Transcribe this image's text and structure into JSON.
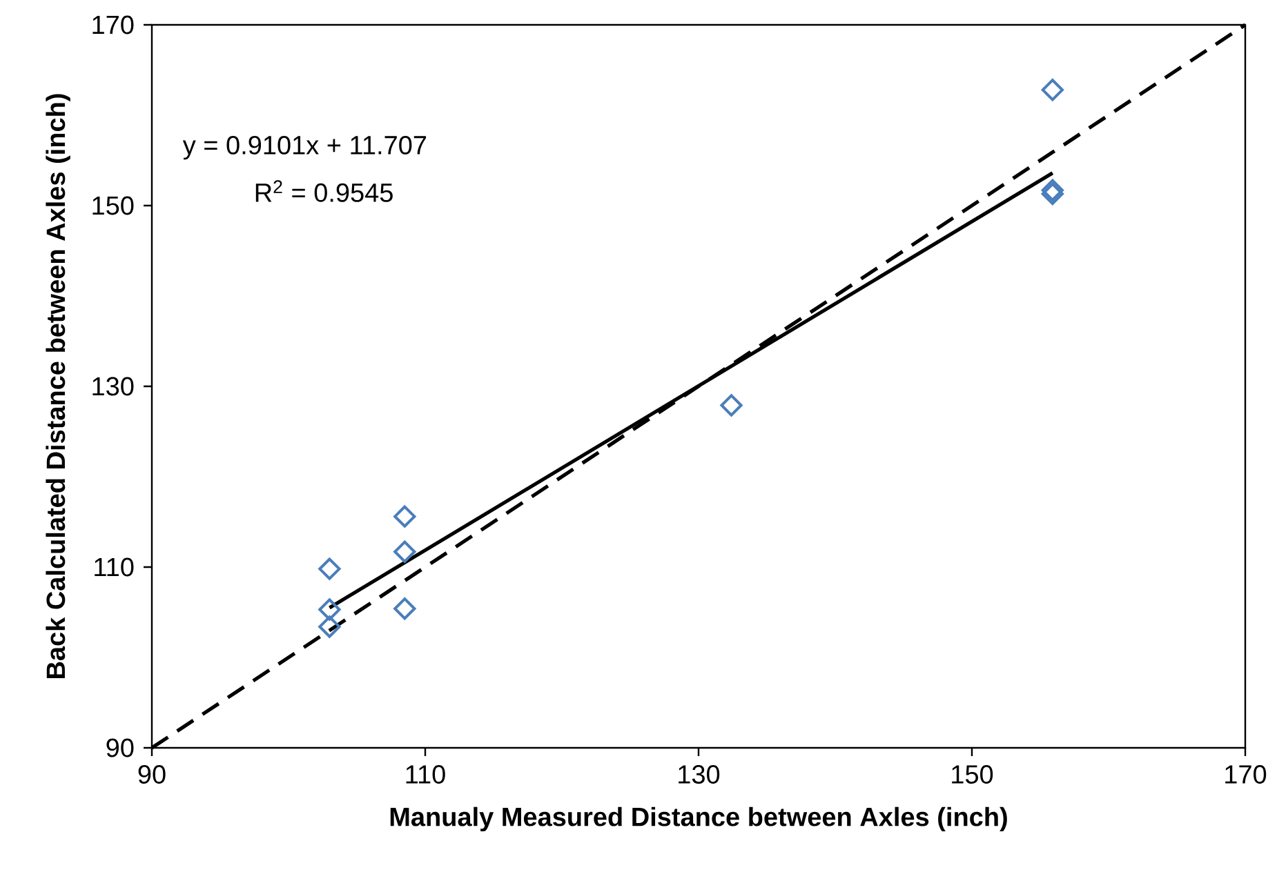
{
  "chart_data": {
    "type": "scatter",
    "xlabel": "Manualy Measured Distance between Axles (inch)",
    "ylabel": "Back Calculated Distance between Axles (inch)",
    "xlim": [
      90,
      170
    ],
    "ylim": [
      90,
      170
    ],
    "xticks": [
      90,
      110,
      130,
      150,
      170
    ],
    "yticks": [
      90,
      110,
      130,
      150,
      170
    ],
    "grid": false,
    "annotations": [
      "y = 0.9101x + 11.707",
      "R$^{2}$ = 0.9545"
    ],
    "series": [
      {
        "marker": "diamond",
        "color": "#4a7ebb",
        "x": [
          103,
          103,
          103,
          108.5,
          108.5,
          108.5,
          132.4,
          155.9,
          155.9,
          155.9
        ],
        "values": [
          109.8,
          105.3,
          103.4,
          115.6,
          111.7,
          105.4,
          127.9,
          162.8,
          151.7,
          151.3
        ]
      },
      {
        "type": "line",
        "color": "#000000",
        "line_style": "solid",
        "x": [
          103,
          155.9
        ],
        "values": [
          105.5,
          153.6
        ],
        "marker": "none"
      },
      {
        "type": "line",
        "color": "#000000",
        "line_style": "dashed",
        "x": [
          90,
          170
        ],
        "values": [
          90,
          170
        ],
        "marker": "none"
      }
    ]
  }
}
